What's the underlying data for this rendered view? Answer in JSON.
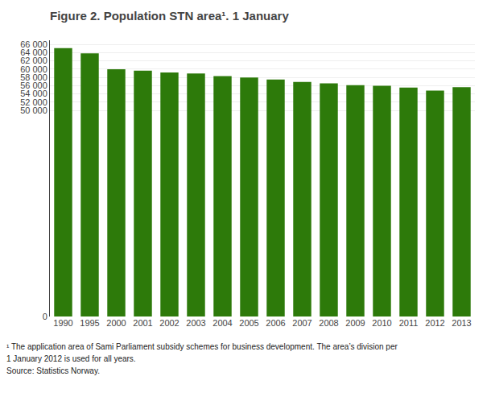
{
  "chart_data": {
    "type": "bar",
    "title": "Figure 2. Population STN area¹. 1 January",
    "categories": [
      "1990",
      "1995",
      "2000",
      "2001",
      "2002",
      "2003",
      "2004",
      "2005",
      "2006",
      "2007",
      "2008",
      "2009",
      "2010",
      "2011",
      "2012",
      "2013"
    ],
    "values": [
      65100,
      63850,
      59950,
      59650,
      59200,
      58950,
      58300,
      57950,
      57500,
      56900,
      56550,
      56100,
      55950,
      55500,
      54800,
      55600
    ],
    "color": "#2d7a0a",
    "ylim": [
      0,
      67000
    ],
    "yticks": [
      0,
      {
        "value": 50000,
        "label": "50 000"
      },
      {
        "value": 52000,
        "label": "52 000"
      },
      {
        "value": 54000,
        "label": "54 000"
      },
      {
        "value": 56000,
        "label": "56 000"
      },
      {
        "value": 58000,
        "label": "58 000"
      },
      {
        "value": 60000,
        "label": "60 000"
      },
      {
        "value": 62000,
        "label": "62 000"
      },
      {
        "value": 64000,
        "label": "64 000"
      },
      {
        "value": 66000,
        "label": "66 000"
      }
    ],
    "grid": true,
    "annotations": [
      "¹ The application area of Sami Parliament subsidy schemes for business development. The area’s division per",
      "1 January 2012 is used for all years.",
      "Source: Statistics Norway."
    ]
  }
}
